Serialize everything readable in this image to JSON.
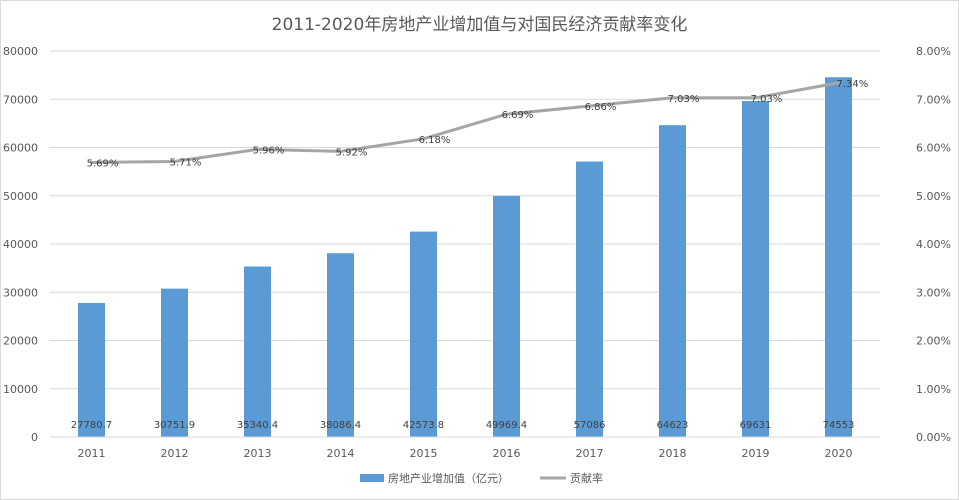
{
  "chart_data": {
    "type": "bar",
    "title": "2011-2020年房地产业增加值与对国民经济贡献率变化",
    "categories": [
      "2011",
      "2012",
      "2013",
      "2014",
      "2015",
      "2016",
      "2017",
      "2018",
      "2019",
      "2020"
    ],
    "series": [
      {
        "name": "房地产业增加值（亿元）",
        "type": "bar",
        "axis": "left",
        "color": "#5b9bd5",
        "values": [
          27780.7,
          30751.9,
          35340.4,
          38086.4,
          42573.8,
          49969.4,
          57086,
          64623,
          69631,
          74553
        ],
        "labels": [
          "27780.7",
          "30751.9",
          "35340.4",
          "38086.4",
          "42573.8",
          "49969.4",
          "57086",
          "64623",
          "69631",
          "74553"
        ]
      },
      {
        "name": "贡献率",
        "type": "line",
        "axis": "right",
        "color": "#a5a5a5",
        "values": [
          5.69,
          5.71,
          5.96,
          5.92,
          6.18,
          6.69,
          6.86,
          7.03,
          7.03,
          7.34
        ],
        "labels": [
          "5.69%",
          "5.71%",
          "5.96%",
          "5.92%",
          "6.18%",
          "6.69%",
          "6.86%",
          "7.03%",
          "7.03%",
          "7.34%"
        ]
      }
    ],
    "y_left": {
      "min": 0,
      "max": 80000,
      "ticks": [
        0,
        10000,
        20000,
        30000,
        40000,
        50000,
        60000,
        70000,
        80000
      ],
      "tick_labels": [
        "0",
        "10000",
        "20000",
        "30000",
        "40000",
        "50000",
        "60000",
        "70000",
        "80000"
      ]
    },
    "y_right": {
      "min": 0,
      "max": 8,
      "ticks": [
        0,
        1,
        2,
        3,
        4,
        5,
        6,
        7,
        8
      ],
      "tick_labels": [
        "0.00%",
        "1.00%",
        "2.00%",
        "3.00%",
        "4.00%",
        "5.00%",
        "6.00%",
        "7.00%",
        "8.00%"
      ]
    },
    "grid": true,
    "legend_position": "bottom"
  }
}
